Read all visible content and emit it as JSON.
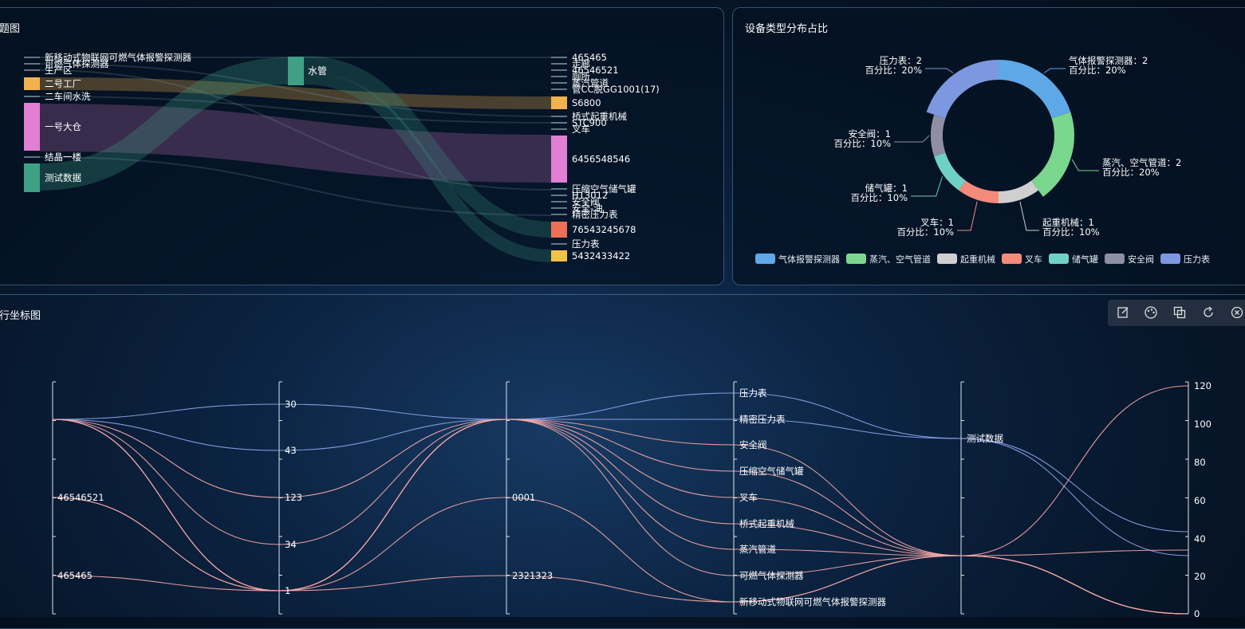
{
  "sankey": {
    "title": "题图",
    "sources": [
      "新移动式物联网可燃气体报警探测器",
      "可燃气体探测器",
      "生产区",
      "二号工厂",
      "二车间水洗",
      "一号大仓",
      "结晶一楼",
      "测试数据"
    ],
    "middle": [
      "水管"
    ],
    "targets": [
      "465465",
      "走廊",
      "46546521",
      "厕所",
      "蒸汽管道",
      "管CC脱GG1001(17)",
      "S6800",
      "桥式起重机械",
      "STC900",
      "叉车",
      "6456548546",
      "压缩空气储气罐",
      "H13012",
      "安全阀",
      "安全-油",
      "精密压力表",
      "76543245678",
      "压力表",
      "5432433422"
    ]
  },
  "pie": {
    "title": "设备类型分布占比",
    "chart_data": {
      "type": "pie",
      "categories": [
        "气体报警探测器",
        "蒸汽、空气管道",
        "起重机械",
        "叉车",
        "储气罐",
        "安全阀",
        "压力表"
      ],
      "values": [
        2,
        2,
        1,
        1,
        1,
        1,
        2
      ],
      "percents": [
        "20%",
        "20%",
        "10%",
        "10%",
        "10%",
        "10%",
        "20%"
      ],
      "colors": [
        "#5fa8e8",
        "#7bd68e",
        "#cfcfcf",
        "#f48a7a",
        "#6fd1c6",
        "#8e8fa6",
        "#7d98e0"
      ]
    },
    "labels": [
      {
        "name": "气体报警探测器：2",
        "pct": "百分比：20%"
      },
      {
        "name": "蒸汽、空气管道：2",
        "pct": "百分比：20%"
      },
      {
        "name": "起重机械：1",
        "pct": "百分比：10%"
      },
      {
        "name": "叉车：1",
        "pct": "百分比：10%"
      },
      {
        "name": "储气罐：1",
        "pct": "百分比：10%"
      },
      {
        "name": "安全阀：1",
        "pct": "百分比：10%"
      },
      {
        "name": "压力表：2",
        "pct": "百分比：20%"
      }
    ]
  },
  "parallel": {
    "title": "行坐标图",
    "axis1_labels": [
      "46546521",
      "465465"
    ],
    "axis2_labels": [
      "30",
      "43",
      "123",
      "34",
      "1"
    ],
    "axis3_labels": [
      "0001",
      "2321323"
    ],
    "axis4_labels": [
      "压力表",
      "精密压力表",
      "安全阀",
      "压缩空气储气罐",
      "叉车",
      "桥式起重机械",
      "蒸汽管道",
      "可燃气体探测器",
      "新移动式物联网可燃气体报警探测器"
    ],
    "axis5_labels": [
      "测试数据"
    ],
    "axis6_labels": [
      "120",
      "100",
      "80",
      "60",
      "40",
      "20",
      "0"
    ]
  },
  "toolbox": {
    "icons": [
      "edit-icon",
      "palette-icon",
      "copy-icon",
      "refresh-icon",
      "close-icon"
    ]
  }
}
